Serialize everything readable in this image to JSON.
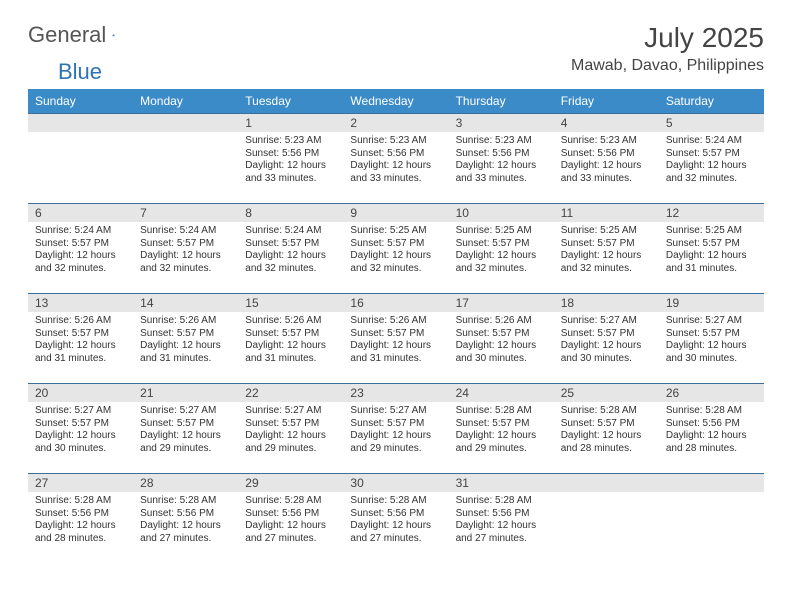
{
  "logo": {
    "word1": "General",
    "word2": "Blue"
  },
  "title": "July 2025",
  "location": "Mawab, Davao, Philippines",
  "colors": {
    "header_bg": "#3b8bc9",
    "header_text": "#ffffff",
    "daynum_bg": "#e6e6e6",
    "row_rule": "#3b6f9b",
    "logo_blue": "#2e74b5",
    "body_text": "#333333"
  },
  "weekday_labels": [
    "Sunday",
    "Monday",
    "Tuesday",
    "Wednesday",
    "Thursday",
    "Friday",
    "Saturday"
  ],
  "weeks": [
    [
      null,
      null,
      {
        "n": "1",
        "sr": "5:23 AM",
        "ss": "5:56 PM",
        "dl": "12 hours and 33 minutes."
      },
      {
        "n": "2",
        "sr": "5:23 AM",
        "ss": "5:56 PM",
        "dl": "12 hours and 33 minutes."
      },
      {
        "n": "3",
        "sr": "5:23 AM",
        "ss": "5:56 PM",
        "dl": "12 hours and 33 minutes."
      },
      {
        "n": "4",
        "sr": "5:23 AM",
        "ss": "5:56 PM",
        "dl": "12 hours and 33 minutes."
      },
      {
        "n": "5",
        "sr": "5:24 AM",
        "ss": "5:57 PM",
        "dl": "12 hours and 32 minutes."
      }
    ],
    [
      {
        "n": "6",
        "sr": "5:24 AM",
        "ss": "5:57 PM",
        "dl": "12 hours and 32 minutes."
      },
      {
        "n": "7",
        "sr": "5:24 AM",
        "ss": "5:57 PM",
        "dl": "12 hours and 32 minutes."
      },
      {
        "n": "8",
        "sr": "5:24 AM",
        "ss": "5:57 PM",
        "dl": "12 hours and 32 minutes."
      },
      {
        "n": "9",
        "sr": "5:25 AM",
        "ss": "5:57 PM",
        "dl": "12 hours and 32 minutes."
      },
      {
        "n": "10",
        "sr": "5:25 AM",
        "ss": "5:57 PM",
        "dl": "12 hours and 32 minutes."
      },
      {
        "n": "11",
        "sr": "5:25 AM",
        "ss": "5:57 PM",
        "dl": "12 hours and 32 minutes."
      },
      {
        "n": "12",
        "sr": "5:25 AM",
        "ss": "5:57 PM",
        "dl": "12 hours and 31 minutes."
      }
    ],
    [
      {
        "n": "13",
        "sr": "5:26 AM",
        "ss": "5:57 PM",
        "dl": "12 hours and 31 minutes."
      },
      {
        "n": "14",
        "sr": "5:26 AM",
        "ss": "5:57 PM",
        "dl": "12 hours and 31 minutes."
      },
      {
        "n": "15",
        "sr": "5:26 AM",
        "ss": "5:57 PM",
        "dl": "12 hours and 31 minutes."
      },
      {
        "n": "16",
        "sr": "5:26 AM",
        "ss": "5:57 PM",
        "dl": "12 hours and 31 minutes."
      },
      {
        "n": "17",
        "sr": "5:26 AM",
        "ss": "5:57 PM",
        "dl": "12 hours and 30 minutes."
      },
      {
        "n": "18",
        "sr": "5:27 AM",
        "ss": "5:57 PM",
        "dl": "12 hours and 30 minutes."
      },
      {
        "n": "19",
        "sr": "5:27 AM",
        "ss": "5:57 PM",
        "dl": "12 hours and 30 minutes."
      }
    ],
    [
      {
        "n": "20",
        "sr": "5:27 AM",
        "ss": "5:57 PM",
        "dl": "12 hours and 30 minutes."
      },
      {
        "n": "21",
        "sr": "5:27 AM",
        "ss": "5:57 PM",
        "dl": "12 hours and 29 minutes."
      },
      {
        "n": "22",
        "sr": "5:27 AM",
        "ss": "5:57 PM",
        "dl": "12 hours and 29 minutes."
      },
      {
        "n": "23",
        "sr": "5:27 AM",
        "ss": "5:57 PM",
        "dl": "12 hours and 29 minutes."
      },
      {
        "n": "24",
        "sr": "5:28 AM",
        "ss": "5:57 PM",
        "dl": "12 hours and 29 minutes."
      },
      {
        "n": "25",
        "sr": "5:28 AM",
        "ss": "5:57 PM",
        "dl": "12 hours and 28 minutes."
      },
      {
        "n": "26",
        "sr": "5:28 AM",
        "ss": "5:56 PM",
        "dl": "12 hours and 28 minutes."
      }
    ],
    [
      {
        "n": "27",
        "sr": "5:28 AM",
        "ss": "5:56 PM",
        "dl": "12 hours and 28 minutes."
      },
      {
        "n": "28",
        "sr": "5:28 AM",
        "ss": "5:56 PM",
        "dl": "12 hours and 27 minutes."
      },
      {
        "n": "29",
        "sr": "5:28 AM",
        "ss": "5:56 PM",
        "dl": "12 hours and 27 minutes."
      },
      {
        "n": "30",
        "sr": "5:28 AM",
        "ss": "5:56 PM",
        "dl": "12 hours and 27 minutes."
      },
      {
        "n": "31",
        "sr": "5:28 AM",
        "ss": "5:56 PM",
        "dl": "12 hours and 27 minutes."
      },
      null,
      null
    ]
  ],
  "labels": {
    "sunrise_prefix": "Sunrise: ",
    "sunset_prefix": "Sunset: ",
    "daylight_prefix": "Daylight: "
  }
}
